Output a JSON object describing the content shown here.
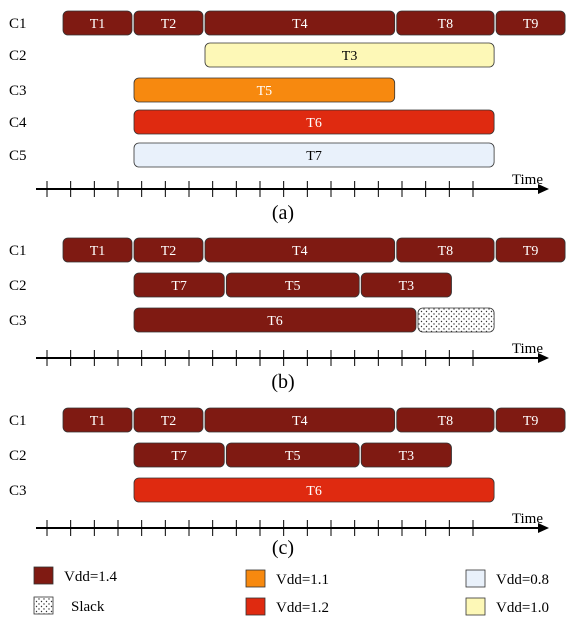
{
  "colors": {
    "vdd_1_4": "#7f1a12",
    "vdd_1_2": "#df2a10",
    "vdd_1_1": "#f7890f",
    "vdd_1_0": "#fdf8b7",
    "vdd_0_8": "#e9f1fb",
    "slack": "#ffffff",
    "stroke": "#333333"
  },
  "axis_label": "Time",
  "panels": [
    {
      "label": "(a)",
      "rows": [
        {
          "name": "C1",
          "tasks": [
            {
              "label": "T1",
              "start": 0,
              "end": 1,
              "vdd": "1.4"
            },
            {
              "label": "T2",
              "start": 1,
              "end": 2,
              "vdd": "1.4"
            },
            {
              "label": "T4",
              "start": 2,
              "end": 4.7,
              "vdd": "1.4"
            },
            {
              "label": "T8",
              "start": 4.7,
              "end": 6.1,
              "vdd": "1.4"
            },
            {
              "label": "T9",
              "start": 6.1,
              "end": 7.1,
              "vdd": "1.4"
            }
          ]
        },
        {
          "name": "C2",
          "tasks": [
            {
              "label": "T3",
              "start": 2,
              "end": 6.1,
              "vdd": "1.0"
            }
          ]
        },
        {
          "name": "C3",
          "tasks": [
            {
              "label": "T5",
              "start": 1,
              "end": 4.7,
              "vdd": "1.1"
            }
          ]
        },
        {
          "name": "C4",
          "tasks": [
            {
              "label": "T6",
              "start": 1,
              "end": 6.1,
              "vdd": "1.2"
            }
          ]
        },
        {
          "name": "C5",
          "tasks": [
            {
              "label": "T7",
              "start": 1,
              "end": 6.1,
              "vdd": "0.8"
            }
          ]
        }
      ]
    },
    {
      "label": "(b)",
      "rows": [
        {
          "name": "C1",
          "tasks": [
            {
              "label": "T1",
              "start": 0,
              "end": 1,
              "vdd": "1.4"
            },
            {
              "label": "T2",
              "start": 1,
              "end": 2,
              "vdd": "1.4"
            },
            {
              "label": "T4",
              "start": 2,
              "end": 4.7,
              "vdd": "1.4"
            },
            {
              "label": "T8",
              "start": 4.7,
              "end": 6.1,
              "vdd": "1.4"
            },
            {
              "label": "T9",
              "start": 6.1,
              "end": 7.1,
              "vdd": "1.4"
            }
          ]
        },
        {
          "name": "C2",
          "tasks": [
            {
              "label": "T7",
              "start": 1,
              "end": 2.3,
              "vdd": "1.4"
            },
            {
              "label": "T5",
              "start": 2.3,
              "end": 4.2,
              "vdd": "1.4"
            },
            {
              "label": "T3",
              "start": 4.2,
              "end": 5.5,
              "vdd": "1.4"
            }
          ]
        },
        {
          "name": "C3",
          "tasks": [
            {
              "label": "T6",
              "start": 1,
              "end": 5,
              "vdd": "1.4"
            },
            {
              "label": "",
              "start": 5,
              "end": 6.1,
              "vdd": "slack"
            }
          ]
        }
      ]
    },
    {
      "label": "(c)",
      "rows": [
        {
          "name": "C1",
          "tasks": [
            {
              "label": "T1",
              "start": 0,
              "end": 1,
              "vdd": "1.4"
            },
            {
              "label": "T2",
              "start": 1,
              "end": 2,
              "vdd": "1.4"
            },
            {
              "label": "T4",
              "start": 2,
              "end": 4.7,
              "vdd": "1.4"
            },
            {
              "label": "T8",
              "start": 4.7,
              "end": 6.1,
              "vdd": "1.4"
            },
            {
              "label": "T9",
              "start": 6.1,
              "end": 7.1,
              "vdd": "1.4"
            }
          ]
        },
        {
          "name": "C2",
          "tasks": [
            {
              "label": "T7",
              "start": 1,
              "end": 2.3,
              "vdd": "1.4"
            },
            {
              "label": "T5",
              "start": 2.3,
              "end": 4.2,
              "vdd": "1.4"
            },
            {
              "label": "T3",
              "start": 4.2,
              "end": 5.5,
              "vdd": "1.4"
            }
          ]
        },
        {
          "name": "C3",
          "tasks": [
            {
              "label": "T6",
              "start": 1,
              "end": 6.1,
              "vdd": "1.2"
            }
          ]
        }
      ]
    }
  ],
  "legend": [
    {
      "key": "vdd_1_4",
      "label": "Vdd=1.4"
    },
    {
      "key": "vdd_1_1",
      "label": "Vdd=1.1"
    },
    {
      "key": "vdd_0_8",
      "label": "Vdd=0.8"
    },
    {
      "key": "slack",
      "label": "Slack"
    },
    {
      "key": "vdd_1_2",
      "label": "Vdd=1.2"
    },
    {
      "key": "vdd_1_0",
      "label": "Vdd=1.0"
    }
  ]
}
